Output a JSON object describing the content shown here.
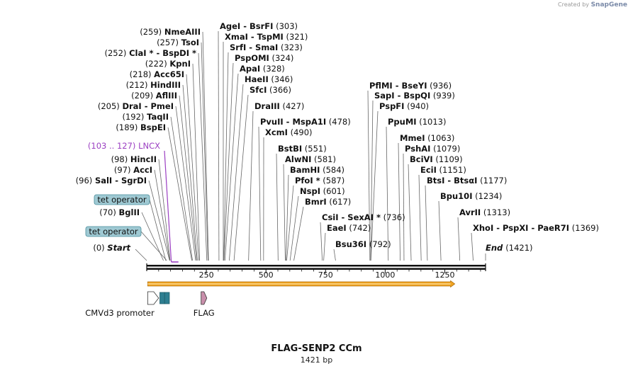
{
  "credit": {
    "prefix": "Created by",
    "brand": "SnapGene"
  },
  "map": {
    "title": "FLAG-SENP2 CCm",
    "size_label": "1421 bp",
    "length_bp": 1421,
    "axis_ticks": [
      250,
      500,
      750,
      1000,
      1250
    ],
    "start_label": {
      "pos": "(0)",
      "name": "Start"
    },
    "end_label": {
      "name": "End",
      "pos": "(1421)"
    }
  },
  "colors": {
    "lncx": "#9b3fc2",
    "cmv": "#ffffff",
    "tet": "#2e7f91",
    "flag": "#c98fab",
    "orf": "#f0a422"
  },
  "sites": [
    {
      "left": "(259)",
      "name": "NmeAIII",
      "right": "",
      "bp": 259
    },
    {
      "left": "(257)",
      "name": "TsoI",
      "right": "",
      "bp": 257
    },
    {
      "left": "(252)",
      "name": "ClaI * - BspDI *",
      "right": "",
      "bp": 252
    },
    {
      "left": "(222)",
      "name": "KpnI",
      "right": "",
      "bp": 222
    },
    {
      "left": "(218)",
      "name": "Acc65I",
      "right": "",
      "bp": 218
    },
    {
      "left": "(212)",
      "name": "HindIII",
      "right": "",
      "bp": 212
    },
    {
      "left": "(209)",
      "name": "AflIII",
      "right": "",
      "bp": 209
    },
    {
      "left": "(205)",
      "name": "DraI - PmeI",
      "right": "",
      "bp": 205
    },
    {
      "left": "(192)",
      "name": "TaqII",
      "right": "",
      "bp": 192
    },
    {
      "left": "(189)",
      "name": "BspEI",
      "right": "",
      "bp": 189
    },
    {
      "left": "(98)",
      "name": "HincII",
      "right": "",
      "bp": 98
    },
    {
      "left": "(97)",
      "name": "AccI",
      "right": "",
      "bp": 97
    },
    {
      "left": "(96)",
      "name": "SalI - SgrDI",
      "right": "",
      "bp": 96
    },
    {
      "left": "(70)",
      "name": "BglII",
      "right": "",
      "bp": 70
    },
    {
      "left": "",
      "name": "AgeI - BsrFI",
      "right": "(303)",
      "bp": 303
    },
    {
      "left": "",
      "name": "XmaI - TspMI",
      "right": "(321)",
      "bp": 321
    },
    {
      "left": "",
      "name": "SrfI - SmaI",
      "right": "(323)",
      "bp": 323
    },
    {
      "left": "",
      "name": "PspOMI",
      "right": "(324)",
      "bp": 324
    },
    {
      "left": "",
      "name": "ApaI",
      "right": "(328)",
      "bp": 328
    },
    {
      "left": "",
      "name": "HaeII",
      "right": "(346)",
      "bp": 346
    },
    {
      "left": "",
      "name": "SfcI",
      "right": "(366)",
      "bp": 366
    },
    {
      "left": "",
      "name": "DraIII",
      "right": "(427)",
      "bp": 427
    },
    {
      "left": "",
      "name": "PvuII - MspA1I",
      "right": "(478)",
      "bp": 478
    },
    {
      "left": "",
      "name": "XcmI",
      "right": "(490)",
      "bp": 490
    },
    {
      "left": "",
      "name": "BstBI",
      "right": "(551)",
      "bp": 551
    },
    {
      "left": "",
      "name": "AlwNI",
      "right": "(581)",
      "bp": 581
    },
    {
      "left": "",
      "name": "BamHI",
      "right": "(584)",
      "bp": 584
    },
    {
      "left": "",
      "name": "PfoI *",
      "right": "(587)",
      "bp": 587
    },
    {
      "left": "",
      "name": "NspI",
      "right": "(601)",
      "bp": 601
    },
    {
      "left": "",
      "name": "BmrI",
      "right": "(617)",
      "bp": 617
    },
    {
      "left": "",
      "name": "CsiI - SexAI *",
      "right": "(736)",
      "bp": 736
    },
    {
      "left": "",
      "name": "EaeI",
      "right": "(742)",
      "bp": 742
    },
    {
      "left": "",
      "name": "Bsu36I",
      "right": "(792)",
      "bp": 792
    },
    {
      "left": "",
      "name": "PflMI - BseYI",
      "right": "(936)",
      "bp": 936
    },
    {
      "left": "",
      "name": "SapI - BspQI",
      "right": "(939)",
      "bp": 939
    },
    {
      "left": "",
      "name": "PspFI",
      "right": "(940)",
      "bp": 940
    },
    {
      "left": "",
      "name": "PpuMI",
      "right": "(1013)",
      "bp": 1013
    },
    {
      "left": "",
      "name": "MmeI",
      "right": "(1063)",
      "bp": 1063
    },
    {
      "left": "",
      "name": "PshAI",
      "right": "(1079)",
      "bp": 1079
    },
    {
      "left": "",
      "name": "BciVI",
      "right": "(1109)",
      "bp": 1109
    },
    {
      "left": "",
      "name": "EciI",
      "right": "(1151)",
      "bp": 1151
    },
    {
      "left": "",
      "name": "BtsI - BtsαI",
      "right": "(1177)",
      "bp": 1177
    },
    {
      "left": "",
      "name": "Bpu10I",
      "right": "(1234)",
      "bp": 1234
    },
    {
      "left": "",
      "name": "AvrII",
      "right": "(1313)",
      "bp": 1313
    },
    {
      "left": "",
      "name": "XhoI - PspXI - PaeR7I",
      "right": "(1369)",
      "bp": 1369
    }
  ],
  "primer": {
    "range": "(103 .. 127)",
    "name": "LNCX",
    "start_bp": 103,
    "end_bp": 127
  },
  "tet_labels": [
    {
      "name": "tet operator",
      "bp": 80
    },
    {
      "name": "tet operator",
      "bp": 84
    }
  ],
  "features": [
    {
      "name": "CMVd3 promoter",
      "kind": "arrow",
      "color_key": "cmv",
      "start_bp": 4,
      "end_bp": 50
    },
    {
      "name": "tet operator",
      "kind": "box",
      "color_key": "tet",
      "start_bp": 55,
      "end_bp": 75,
      "hide_label": true
    },
    {
      "name": "tet operator",
      "kind": "box",
      "color_key": "tet",
      "start_bp": 75,
      "end_bp": 95,
      "hide_label": true
    },
    {
      "name": "FLAG",
      "kind": "arrow",
      "color_key": "flag",
      "start_bp": 228,
      "end_bp": 252
    }
  ],
  "orf": {
    "start_bp": 4,
    "end_bp": 1292
  }
}
